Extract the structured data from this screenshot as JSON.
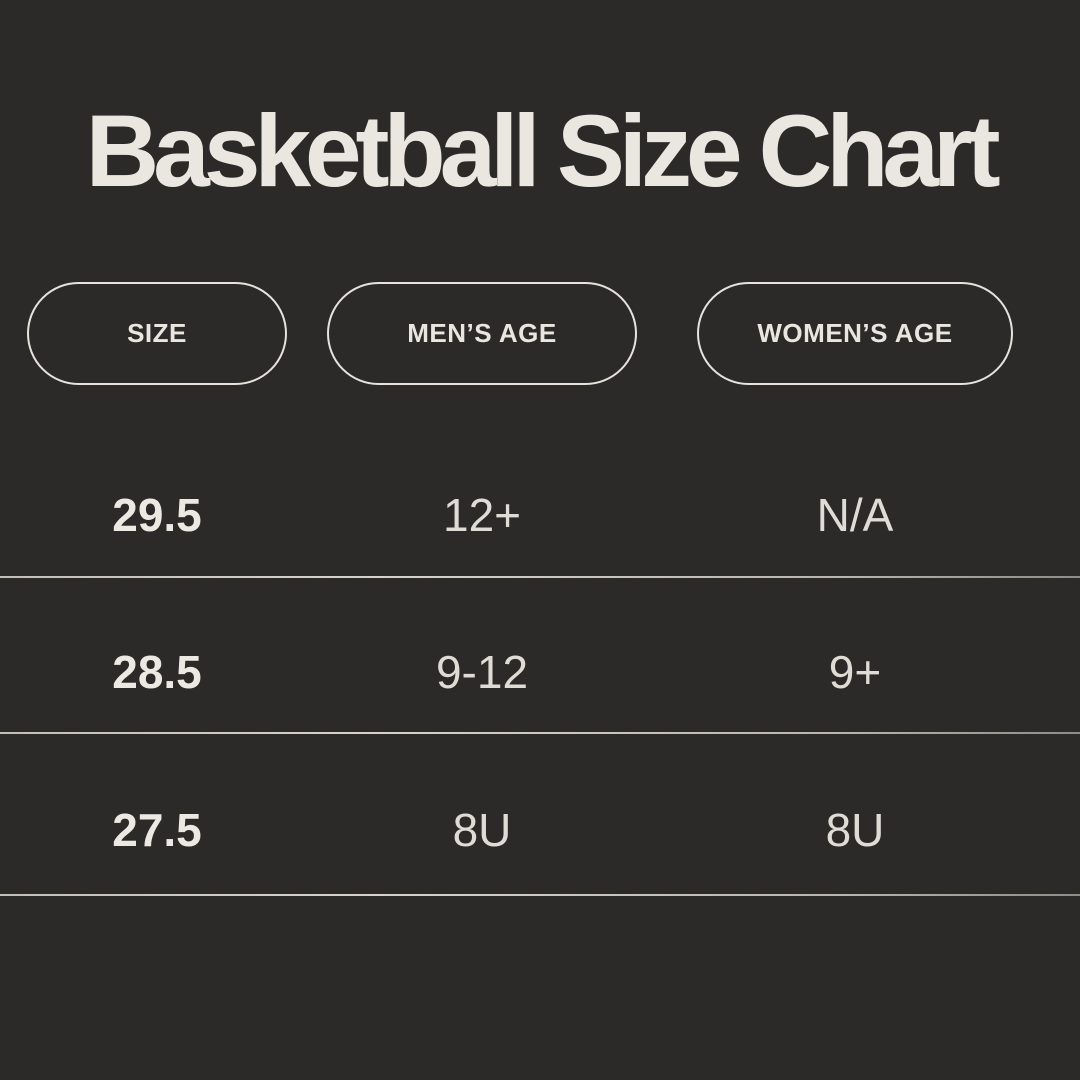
{
  "colors": {
    "background": "#2b2a28",
    "title-text": "#eae7e1",
    "header-text": "#e9e6e0",
    "pill-border": "#e6e3dd",
    "value-text": "#dfdcd6",
    "size-text": "#ece9e3",
    "divider": "#d6d3cd"
  },
  "title": "Basketball Size Chart",
  "chart_data": {
    "type": "table",
    "title": "Basketball Size Chart",
    "columns": [
      "SIZE",
      "MEN’S AGE",
      "WOMEN’S AGE"
    ],
    "rows": [
      [
        "29.5",
        "12+",
        "N/A"
      ],
      [
        "28.5",
        "9-12",
        "9+"
      ],
      [
        "27.5",
        "8U",
        "8U"
      ]
    ],
    "layout": {
      "header_style": "outlined-pill",
      "row_separators": true,
      "theme": "dark"
    }
  }
}
